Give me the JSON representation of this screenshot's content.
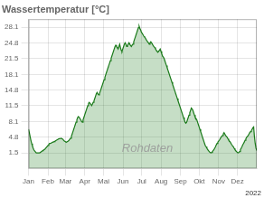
{
  "chart_data": {
    "type": "area",
    "title": "Wassertemperatur [°C]",
    "annotations": [
      {
        "text": "Rohdaten",
        "x": 190,
        "y": 2.5
      },
      {
        "text": "2022"
      }
    ],
    "color": "#1a7a1a",
    "grid": true,
    "xlim": [
      0,
      365
    ],
    "xticks": [
      {
        "value": 0,
        "label": "Jan"
      },
      {
        "value": 31,
        "label": "Feb"
      },
      {
        "value": 59,
        "label": "Mar"
      },
      {
        "value": 90,
        "label": "Apr"
      },
      {
        "value": 120,
        "label": "Mai"
      },
      {
        "value": 151,
        "label": "Jun"
      },
      {
        "value": 181,
        "label": "Jul"
      },
      {
        "value": 212,
        "label": "Aug"
      },
      {
        "value": 243,
        "label": "Sep"
      },
      {
        "value": 273,
        "label": "Okt"
      },
      {
        "value": 304,
        "label": "Nov"
      },
      {
        "value": 334,
        "label": "Dez"
      }
    ],
    "ylim": [
      -1.8,
      29.8
    ],
    "yticks": [
      1.5,
      4.8,
      8.1,
      11.5,
      14.8,
      18.1,
      21.5,
      24.8,
      28.1
    ],
    "x": [
      0,
      1.25,
      2.49,
      3.74,
      4.98,
      6.23,
      7.47,
      8.72,
      9.97,
      11.21,
      12.46,
      13.7,
      14.95,
      16.19,
      17.44,
      18.69,
      19.93,
      21.18,
      22.42,
      23.67,
      24.91,
      26.16,
      27.41,
      28.65,
      29.9,
      31.14,
      32.39,
      33.63,
      34.88,
      36.13,
      37.37,
      38.62,
      39.86,
      41.11,
      42.35,
      43.6,
      44.85,
      46.09,
      47.34,
      48.58,
      49.83,
      51.08,
      52.32,
      53.57,
      54.81,
      56.06,
      57.3,
      58.55,
      59.8,
      61.04,
      62.29,
      63.53,
      64.78,
      66.02,
      67.27,
      68.52,
      69.76,
      71.01,
      72.25,
      73.5,
      74.74,
      75.99,
      77.24,
      78.48,
      79.73,
      80.97,
      82.22,
      83.46,
      84.71,
      85.96,
      87.2,
      88.45,
      89.69,
      90.94,
      92.18,
      93.43,
      94.68,
      95.92,
      97.17,
      98.41,
      99.66,
      100.9,
      102.15,
      103.4,
      104.64,
      105.89,
      107.13,
      108.38,
      109.62,
      110.87,
      112.12,
      113.36,
      114.61,
      115.85,
      117.1,
      118.34,
      119.59,
      120.84,
      122.08,
      123.33,
      124.57,
      125.82,
      127.06,
      128.31,
      129.56,
      130.8,
      132.05,
      133.29,
      134.54,
      135.78,
      137.03,
      138.28,
      139.52,
      140.77,
      142.01,
      143.26,
      144.51,
      145.75,
      147.0,
      148.24,
      149.49,
      150.73,
      151.98,
      153.23,
      154.47,
      155.72,
      156.96,
      158.21,
      159.45,
      160.7,
      161.95,
      163.19,
      164.44,
      165.68,
      166.93,
      168.17,
      169.42,
      170.67,
      171.91,
      173.16,
      174.4,
      175.65,
      176.89,
      178.14,
      179.39,
      180.63,
      181.88,
      183.12,
      184.37,
      185.61,
      186.86,
      188.11,
      189.35,
      190.6,
      191.84,
      193.09,
      194.33,
      195.58,
      196.83,
      198.07,
      199.32,
      200.56,
      201.81,
      203.05,
      204.3,
      205.55,
      206.79,
      208.04,
      209.28,
      210.53,
      211.77,
      213.02,
      214.27,
      215.51,
      216.76,
      218.0,
      219.25,
      220.49,
      221.74,
      222.99,
      224.23,
      225.48,
      226.72,
      227.97,
      229.22,
      230.46,
      231.71,
      232.95,
      234.2,
      235.44,
      236.69,
      237.94,
      239.18,
      240.43,
      241.67,
      242.92,
      244.16,
      245.41,
      246.66,
      247.9,
      249.15,
      250.39,
      251.64,
      252.88,
      254.13,
      255.38,
      256.62,
      257.87,
      259.11,
      260.36,
      261.6,
      262.85,
      264.1,
      265.34,
      266.59,
      267.83,
      269.08,
      270.32,
      271.57,
      272.82,
      274.06,
      275.31,
      276.55,
      277.8,
      279.04,
      280.29,
      281.54,
      282.78,
      284.03,
      285.27,
      286.52,
      287.76,
      289.01,
      290.26,
      291.5,
      292.75,
      293.99,
      295.24,
      296.48,
      297.73,
      298.98,
      300.22,
      301.47,
      302.71,
      303.96,
      305.2,
      306.45,
      307.7,
      308.94,
      310.19,
      311.43,
      312.68,
      313.92,
      315.17,
      316.42,
      317.66,
      318.91,
      320.15,
      321.4,
      322.65,
      323.89,
      325.14,
      326.38,
      327.63,
      328.87,
      330.12,
      331.37,
      332.61,
      333.86,
      335.1,
      336.35,
      337.59,
      338.84,
      340.09,
      341.33,
      342.58,
      343.82,
      345.07,
      346.31,
      347.56,
      348.81,
      350.05,
      351.3,
      352.54,
      353.79,
      355.03,
      356.28,
      357.53,
      358.77,
      360.02,
      361.26,
      362.51,
      363.75,
      365
    ],
    "values": [
      6.5,
      5.8,
      5.0,
      4.2,
      3.5,
      3.0,
      2.5,
      2.1,
      1.9,
      1.7,
      1.5,
      1.5,
      1.5,
      1.5,
      1.5,
      1.6,
      1.7,
      1.8,
      2.0,
      2.1,
      2.2,
      2.3,
      2.5,
      2.7,
      2.9,
      3.1,
      3.3,
      3.5,
      3.5,
      3.6,
      3.7,
      3.8,
      3.8,
      3.9,
      4.0,
      4.1,
      4.2,
      4.3,
      4.4,
      4.5,
      4.5,
      4.5,
      4.6,
      4.5,
      4.4,
      4.2,
      4.0,
      3.9,
      3.8,
      3.8,
      3.9,
      4.0,
      4.2,
      4.4,
      4.6,
      5.0,
      5.5,
      6.0,
      6.5,
      7.0,
      7.5,
      8.0,
      8.5,
      9.0,
      9.2,
      9.0,
      8.8,
      8.5,
      8.2,
      8.0,
      8.5,
      9.0,
      9.5,
      10.0,
      10.5,
      11.0,
      11.5,
      12.0,
      12.2,
      12.0,
      11.8,
      11.5,
      11.8,
      12.2,
      12.5,
      13.0,
      13.5,
      14.0,
      14.3,
      14.0,
      13.8,
      14.0,
      14.5,
      15.0,
      15.5,
      16.0,
      16.5,
      17.0,
      17.5,
      18.0,
      18.5,
      19.0,
      19.5,
      20.0,
      20.5,
      21.0,
      21.5,
      22.0,
      22.5,
      23.0,
      23.5,
      24.0,
      24.3,
      24.0,
      23.8,
      23.5,
      24.0,
      24.5,
      23.8,
      23.2,
      23.0,
      23.5,
      24.0,
      24.5,
      24.8,
      24.5,
      24.0,
      24.2,
      24.5,
      24.8,
      24.5,
      24.2,
      24.0,
      24.3,
      24.5,
      25.0,
      25.5,
      26.0,
      26.5,
      27.0,
      27.5,
      28.0,
      28.3,
      27.8,
      27.5,
      27.0,
      26.8,
      26.5,
      26.2,
      26.0,
      25.8,
      25.5,
      25.2,
      25.0,
      24.8,
      24.5,
      24.8,
      25.0,
      24.8,
      24.5,
      24.2,
      24.0,
      23.8,
      23.5,
      23.2,
      23.0,
      22.8,
      23.0,
      23.2,
      23.5,
      23.0,
      22.5,
      22.0,
      21.8,
      21.5,
      21.0,
      20.5,
      20.0,
      19.5,
      19.0,
      18.5,
      18.0,
      17.5,
      17.0,
      16.5,
      16.0,
      15.5,
      15.0,
      14.5,
      14.0,
      13.5,
      13.0,
      12.5,
      12.0,
      11.5,
      11.0,
      10.5,
      10.0,
      9.5,
      9.0,
      8.5,
      8.0,
      7.8,
      8.0,
      8.5,
      9.0,
      9.5,
      10.0,
      10.5,
      11.0,
      10.8,
      10.5,
      10.0,
      9.5,
      9.0,
      8.8,
      8.5,
      8.0,
      7.5,
      7.0,
      6.5,
      6.0,
      5.5,
      5.0,
      4.5,
      4.0,
      3.5,
      3.0,
      2.8,
      2.5,
      2.2,
      2.0,
      1.8,
      1.6,
      1.5,
      1.6,
      1.8,
      2.0,
      2.2,
      2.5,
      2.8,
      3.2,
      3.5,
      3.8,
      4.0,
      4.2,
      4.5,
      4.8,
      5.0,
      5.2,
      5.5,
      5.8,
      5.5,
      5.2,
      5.0,
      4.8,
      4.5,
      4.2,
      4.0,
      3.8,
      3.5,
      3.2,
      3.0,
      2.8,
      2.5,
      2.2,
      2.0,
      1.8,
      1.6,
      1.5,
      1.6,
      1.8,
      2.2,
      2.5,
      2.8,
      3.2,
      3.5,
      3.8,
      4.2,
      4.5,
      4.8,
      5.0,
      5.2,
      5.5,
      5.8,
      6.0,
      6.2,
      6.5,
      6.8,
      7.0,
      5.0,
      3.5,
      2.5,
      2.0
    ]
  }
}
